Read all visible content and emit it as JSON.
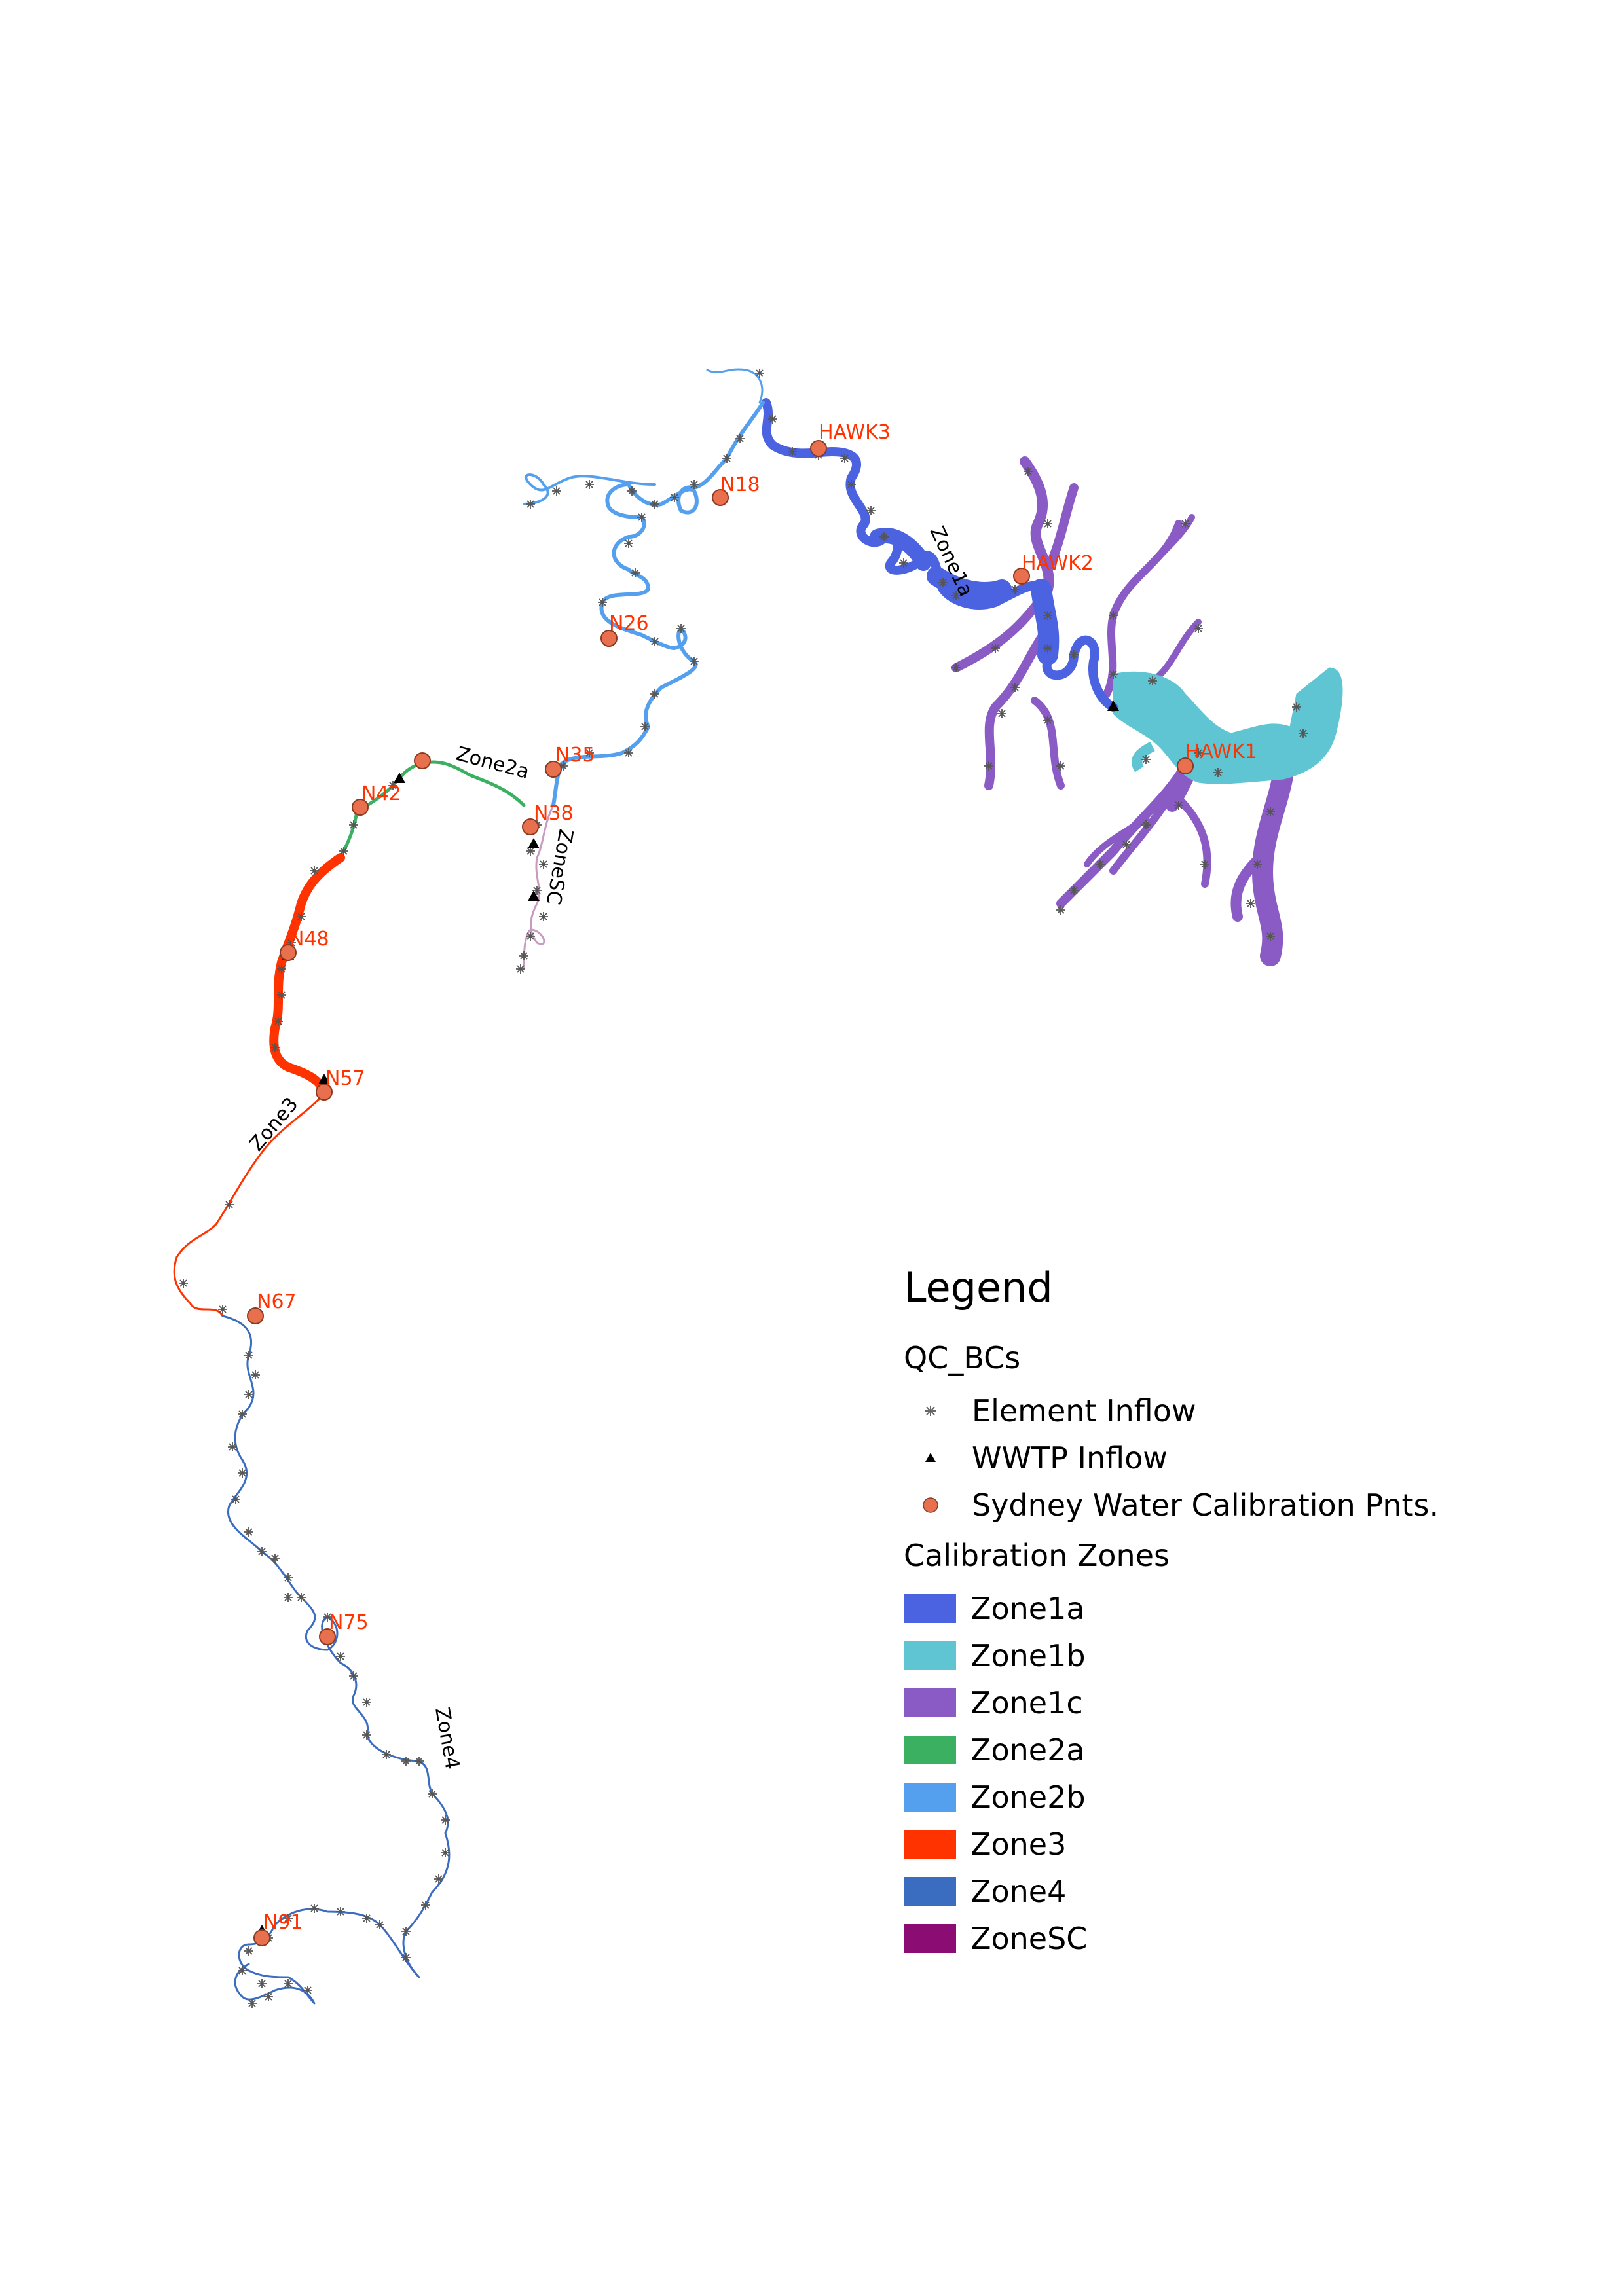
{
  "legend": {
    "title": "Legend",
    "group_points": "QC_BCs",
    "point_items": [
      {
        "label": "Element Inflow",
        "symbol": "asterisk-icon",
        "color": "#666666"
      },
      {
        "label": "WWTP Inflow",
        "symbol": "triangle-icon",
        "color": "#000000"
      },
      {
        "label": "Sydney Water Calibration Pnts.",
        "symbol": "circle-icon",
        "color": "#e8704f"
      }
    ],
    "group_zones": "Calibration Zones",
    "zones": [
      {
        "label": "Zone1a",
        "color": "#4b63e0"
      },
      {
        "label": "Zone1b",
        "color": "#5fc5d2"
      },
      {
        "label": "Zone1c",
        "color": "#8a5bc4"
      },
      {
        "label": "Zone2a",
        "color": "#3ab060"
      },
      {
        "label": "Zone2b",
        "color": "#55a0ee"
      },
      {
        "label": "Zone3",
        "color": "#ff3300"
      },
      {
        "label": "Zone4",
        "color": "#3a6cc0"
      },
      {
        "label": "ZoneSC",
        "color": "#8b0c72"
      }
    ]
  },
  "map": {
    "calibration_points": [
      "HAWK3",
      "N18",
      "HAWK2",
      "N26",
      "HAWK1",
      "N35",
      "N38",
      "N42",
      "N48",
      "N57",
      "N67",
      "N75",
      "N91"
    ],
    "zone_labels": [
      "Zone1a",
      "Zone2a",
      "ZoneSC",
      "Zone3",
      "Zone4"
    ]
  }
}
